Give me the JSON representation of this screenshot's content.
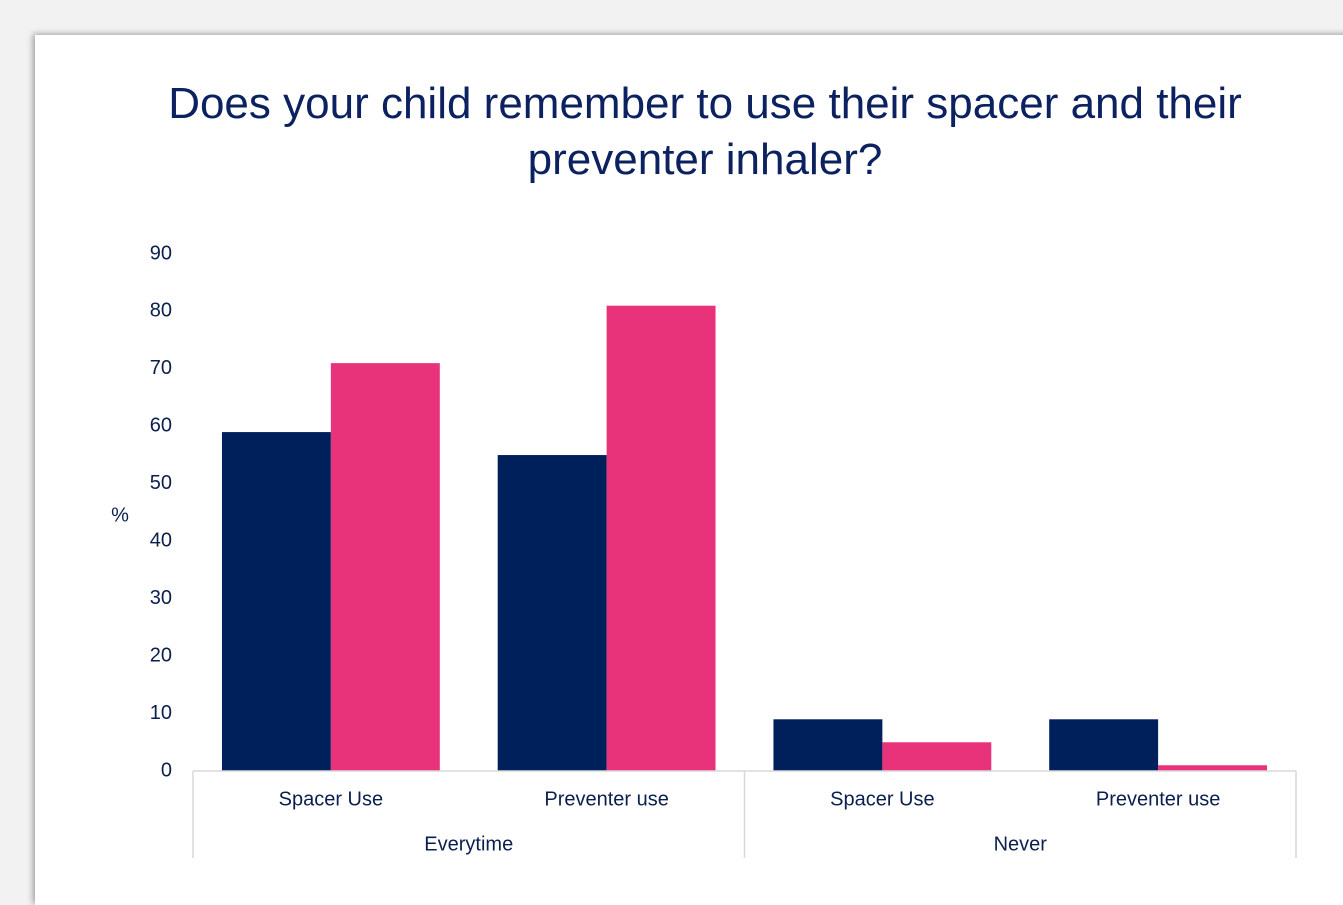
{
  "chart_data": {
    "type": "bar",
    "title": "Does your child remember to use their spacer and their preventer inhaler?",
    "y_label": "%",
    "categories": [
      "Spacer Use",
      "Preventer use",
      "Spacer Use",
      "Preventer use"
    ],
    "groups": [
      "Everytime",
      "Never"
    ],
    "series": [
      {
        "color": "#00205b",
        "values": [
          59,
          55,
          9,
          9
        ]
      },
      {
        "color": "#e8337a",
        "values": [
          71,
          81,
          5,
          1
        ]
      }
    ],
    "ylim": [
      0,
      90
    ],
    "yticks": [
      0,
      10,
      20,
      30,
      40,
      50,
      60,
      70,
      80,
      90
    ]
  }
}
